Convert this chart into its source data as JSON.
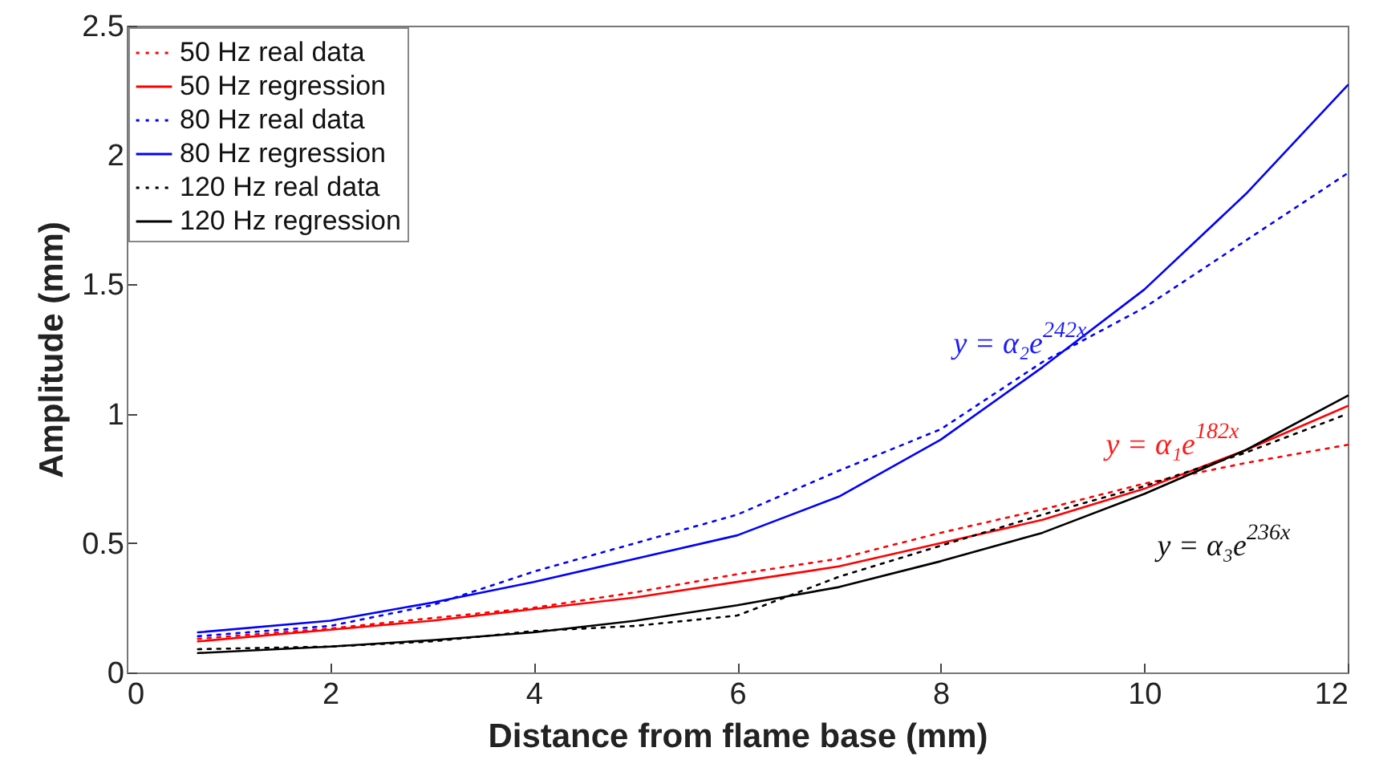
{
  "chart_data": {
    "type": "line",
    "xlabel": "Distance from flame base (mm)",
    "ylabel": "Amplitude (mm)",
    "xlim": [
      0,
      12
    ],
    "ylim": [
      0,
      2.5
    ],
    "xticks": [
      0,
      2,
      4,
      6,
      8,
      10,
      12
    ],
    "yticks": [
      0,
      0.5,
      1,
      1.5,
      2,
      2.5
    ],
    "grid": false,
    "legend": "top left",
    "marker": "none",
    "series": [
      {
        "name": "50 Hz real data",
        "color": "#ff0000",
        "line_style": "dotted",
        "x": [
          0.7,
          2,
          3,
          4,
          5,
          6,
          7,
          8,
          9,
          10,
          11,
          12
        ],
        "values": [
          0.13,
          0.17,
          0.21,
          0.25,
          0.31,
          0.38,
          0.44,
          0.54,
          0.63,
          0.73,
          0.81,
          0.88
        ]
      },
      {
        "name": "50 Hz regression",
        "color": "#ff0000",
        "line_style": "solid",
        "x": [
          0.7,
          2,
          3,
          4,
          5,
          6,
          7,
          8,
          9,
          10,
          11,
          12
        ],
        "values": [
          0.12,
          0.165,
          0.2,
          0.245,
          0.29,
          0.35,
          0.41,
          0.5,
          0.59,
          0.71,
          0.86,
          1.03
        ]
      },
      {
        "name": "80 Hz real data",
        "color": "#0000ff",
        "line_style": "dotted",
        "x": [
          0.7,
          2,
          3,
          4,
          5,
          6,
          7,
          8,
          9,
          10,
          11,
          12
        ],
        "values": [
          0.14,
          0.18,
          0.26,
          0.39,
          0.5,
          0.61,
          0.78,
          0.94,
          1.2,
          1.41,
          1.67,
          1.93
        ]
      },
      {
        "name": "80 Hz regression",
        "color": "#0000ff",
        "line_style": "solid",
        "x": [
          0.7,
          2,
          3,
          4,
          5,
          6,
          7,
          8,
          9,
          10,
          11,
          12
        ],
        "values": [
          0.155,
          0.2,
          0.27,
          0.35,
          0.44,
          0.53,
          0.68,
          0.9,
          1.18,
          1.48,
          1.85,
          2.27
        ]
      },
      {
        "name": "120 Hz real data",
        "color": "#000000",
        "line_style": "dotted",
        "x": [
          0.7,
          2,
          3,
          4,
          5,
          6,
          7,
          8,
          9,
          10,
          11,
          12
        ],
        "values": [
          0.09,
          0.1,
          0.12,
          0.16,
          0.18,
          0.22,
          0.37,
          0.49,
          0.61,
          0.72,
          0.85,
          1.0
        ]
      },
      {
        "name": "120 Hz regression",
        "color": "#000000",
        "line_style": "solid",
        "x": [
          0.7,
          2,
          3,
          4,
          5,
          6,
          7,
          8,
          9,
          10,
          11,
          12
        ],
        "values": [
          0.075,
          0.1,
          0.125,
          0.155,
          0.2,
          0.26,
          0.33,
          0.43,
          0.54,
          0.69,
          0.86,
          1.07
        ]
      }
    ],
    "annotations": [
      "y = α₂e$^{242x}$",
      "y = α₁e$^{182x}$",
      "y = α₃e$^{236x}$"
    ]
  }
}
